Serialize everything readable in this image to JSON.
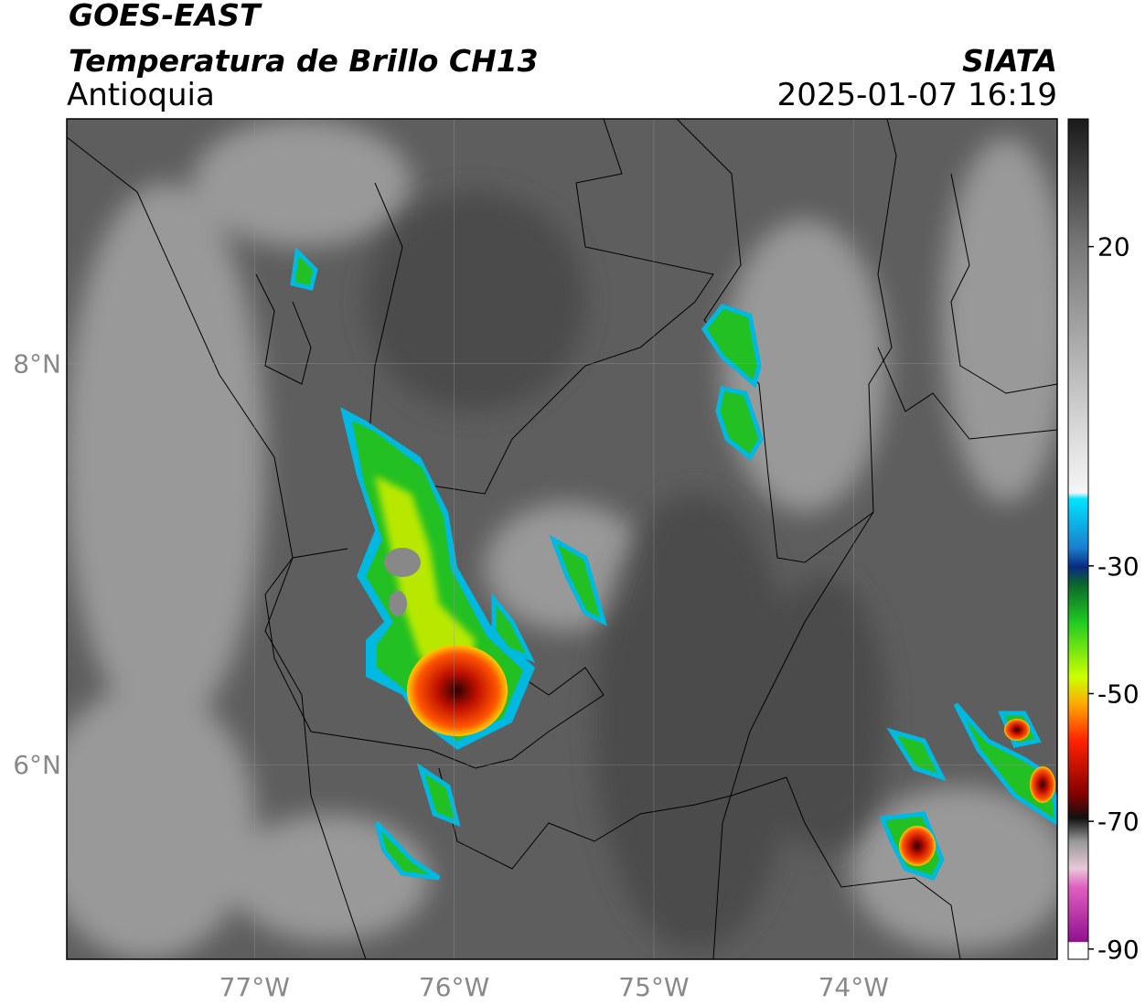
{
  "header": {
    "title": "GOES-EAST",
    "subtitle": "Temperatura de Brillo CH13",
    "region": "Antioquia",
    "source": "SIATA",
    "timestamp": "2025-01-07 16:19"
  },
  "map": {
    "lon_range": [
      -77.94,
      -72.98
    ],
    "lat_range": [
      5.03,
      9.22
    ],
    "lon_ticks": [
      {
        "value": -77,
        "label": "77°W"
      },
      {
        "value": -76,
        "label": "76°W"
      },
      {
        "value": -75,
        "label": "75°W"
      },
      {
        "value": -74,
        "label": "74°W"
      }
    ],
    "lat_ticks": [
      {
        "value": 8,
        "label": "8°N"
      },
      {
        "value": 6,
        "label": "6°N"
      }
    ],
    "grid": true
  },
  "colorbar": {
    "range": [
      -91.6,
      40
    ],
    "ticks": [
      20,
      -30,
      -50,
      -70,
      -90
    ]
  }
}
